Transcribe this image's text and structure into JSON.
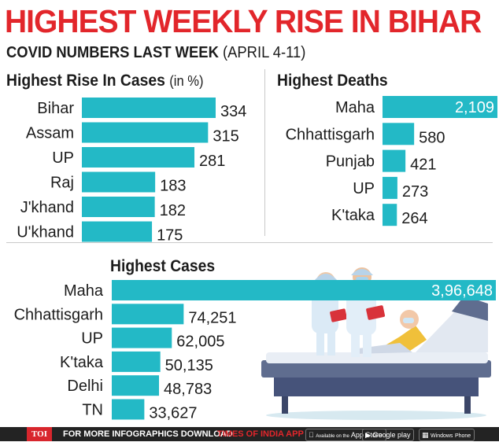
{
  "header": {
    "title": "HIGHEST WEEKLY RISE IN BIHAR",
    "subtitle_bold": "COVID NUMBERS LAST WEEK",
    "subtitle_normal": "(APRIL 4-11)"
  },
  "colors": {
    "accent_red": "#e2262b",
    "bar": "#23b9c6",
    "footer_bg": "#232323"
  },
  "footer": {
    "toi": "TOI",
    "text": "FOR MORE  INFOGRAPHICS DOWNLOAD",
    "brand": "TIMES OF INDIA  APP",
    "app_store_small": "Available on the",
    "app_store": "App Store",
    "google_play": "Google play",
    "windows_small": "Windows",
    "windows": "Phone"
  },
  "chart_data": [
    {
      "type": "bar",
      "orientation": "horizontal",
      "title": "Highest Rise In Cases",
      "unit_label": "(in %)",
      "categories": [
        "Bihar",
        "Assam",
        "UP",
        "Raj",
        "J'khand",
        "U'khand"
      ],
      "values": [
        334,
        315,
        281,
        183,
        182,
        175
      ],
      "value_labels": [
        "334",
        "315",
        "281",
        "183",
        "182",
        "175"
      ]
    },
    {
      "type": "bar",
      "orientation": "horizontal",
      "title": "Highest Deaths",
      "categories": [
        "Maha",
        "Chhattisgarh",
        "Punjab",
        "UP",
        "K'taka"
      ],
      "values": [
        2109,
        580,
        421,
        273,
        264
      ],
      "value_labels": [
        "2,109",
        "580",
        "421",
        "273",
        "264"
      ]
    },
    {
      "type": "bar",
      "orientation": "horizontal",
      "title": "Highest Cases",
      "categories": [
        "Maha",
        "Chhattisgarh",
        "UP",
        "K'taka",
        "Delhi",
        "TN"
      ],
      "values": [
        396648,
        74251,
        62005,
        50135,
        48783,
        33627
      ],
      "value_labels": [
        "3,96,648",
        "74,251",
        "62,005",
        "50,135",
        "48,783",
        "33,627"
      ]
    }
  ]
}
